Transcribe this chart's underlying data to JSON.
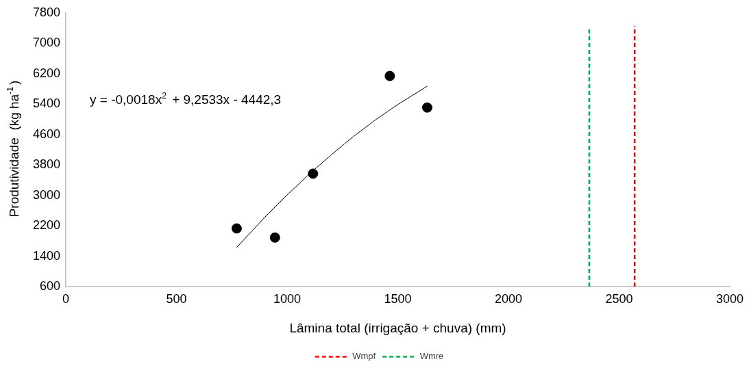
{
  "chart_data": {
    "type": "scatter",
    "xlabel": "Lâmina total (irrigação + chuva) (mm)",
    "ylabel": "Produtividade  (kg ha$^{-1}$)",
    "annotations": [
      "y = -0,0018x$^{2}$ + 9,2533x - 4442,3"
    ],
    "xlim": [
      0,
      3000
    ],
    "xticks": [
      0,
      500,
      1000,
      1500,
      2000,
      2500,
      3000
    ],
    "ylim": [
      600,
      7800
    ],
    "yticks": [
      600,
      1400,
      2200,
      3000,
      3800,
      4600,
      5400,
      6200,
      7000,
      7800
    ],
    "legend": "bottom",
    "series": [
      {
        "type": "scatter",
        "color": "#000000",
        "marker": "circle",
        "x": [
          772,
          945,
          1117,
          1464,
          1633
        ],
        "values": [
          2130,
          1890,
          3570,
          6140,
          5310
        ]
      },
      {
        "type": "line",
        "color": "#000000",
        "marker": "none",
        "line_style": "solid",
        "x": [
          772,
          900,
          1000,
          1100,
          1200,
          1300,
          1400,
          1500,
          1633
        ],
        "values": [
          1630,
          2430,
          3010,
          3560,
          4070,
          4550,
          4990,
          5390,
          5870
        ]
      },
      {
        "type": "line",
        "name": "Wmpf",
        "color": "#ff0000",
        "marker": "none",
        "line_style": "dashed",
        "x": [
          2570,
          2570
        ],
        "values": [
          600,
          7450
        ]
      },
      {
        "type": "line",
        "name": "Wmre",
        "color": "#00b050",
        "marker": "none",
        "line_style": "dashed",
        "x": [
          2365,
          2365
        ],
        "values": [
          600,
          7390
        ]
      }
    ]
  }
}
